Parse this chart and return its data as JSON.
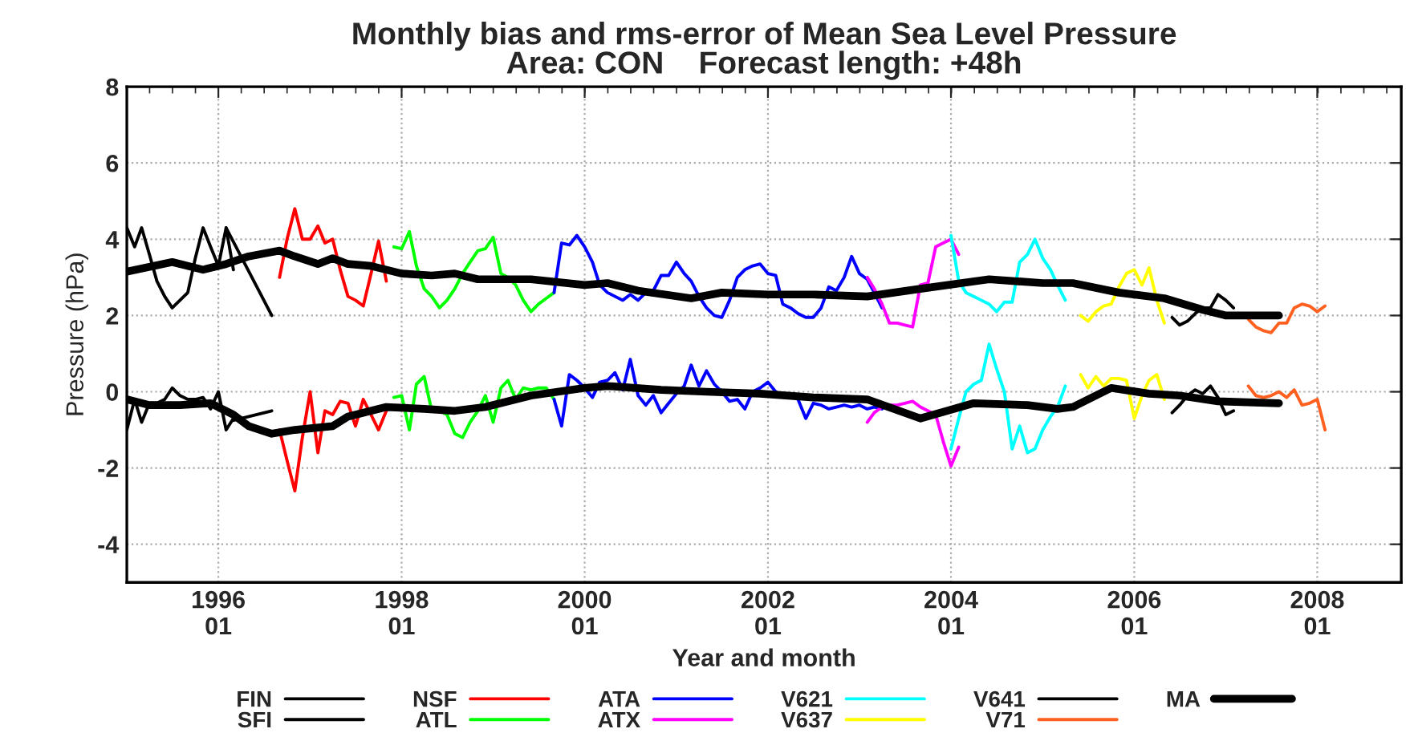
{
  "chart_data": {
    "type": "line",
    "title": "Monthly bias and rms-error of Mean Sea Level Pressure\nArea: CON    Forecast length: +48h",
    "xlabel": "Year and month",
    "ylabel": "Pressure (hPa)",
    "xlim": [
      "1995-01",
      "2008-12"
    ],
    "ylim": [
      -5,
      8
    ],
    "xticks": [
      {
        "value": "1996-01",
        "label": "1996\n01"
      },
      {
        "value": "1998-01",
        "label": "1998\n01"
      },
      {
        "value": "2000-01",
        "label": "2000\n01"
      },
      {
        "value": "2002-01",
        "label": "2002\n01"
      },
      {
        "value": "2004-01",
        "label": "2004\n01"
      },
      {
        "value": "2006-01",
        "label": "2006\n01"
      },
      {
        "value": "2008-01",
        "label": "2008\n01"
      }
    ],
    "yticks": [
      -4,
      -2,
      0,
      2,
      4,
      6,
      8
    ],
    "grid": true,
    "legend": "bottom",
    "marker": "none",
    "line_style": "solid",
    "series": [
      {
        "name": "FIN",
        "color": "#000000",
        "x": [
          "1995-01",
          "1995-02",
          "1995-03",
          "1995-04",
          "1995-05",
          "1995-06",
          "1995-07",
          "1995-08",
          "1995-09",
          "1995-10",
          "1995-11",
          "1995-12",
          "1996-01",
          "1996-02",
          "1996-03"
        ],
        "values": [
          4.3,
          3.8,
          4.3,
          3.6,
          2.9,
          2.5,
          2.2,
          2.4,
          2.6,
          3.5,
          4.3,
          3.8,
          3.3,
          4.3,
          3.2
        ]
      },
      {
        "color": "#000000",
        "x": [
          "1995-01",
          "1995-02",
          "1995-03",
          "1995-04",
          "1995-05",
          "1995-06",
          "1995-07",
          "1995-08",
          "1995-09",
          "1995-10",
          "1995-11",
          "1995-12",
          "1996-01",
          "1996-02",
          "1996-03"
        ],
        "values": [
          -1.0,
          -0.2,
          -0.8,
          -0.3,
          -0.3,
          -0.2,
          0.1,
          -0.1,
          -0.2,
          -0.2,
          -0.15,
          -0.45,
          0.0,
          -1.0,
          -0.7
        ]
      },
      {
        "name": "SFI",
        "color": "#000000",
        "x": [
          "1996-02",
          "1996-08"
        ],
        "values": [
          4.3,
          2.0
        ]
      },
      {
        "color": "#000000",
        "x": [
          "1996-03",
          "1996-08"
        ],
        "values": [
          -0.75,
          -0.5
        ]
      },
      {
        "name": "NSF",
        "color": "#ff0000",
        "x": [
          "1996-09",
          "1996-10",
          "1996-11",
          "1996-12",
          "1997-01",
          "1997-02",
          "1997-03",
          "1997-04",
          "1997-05",
          "1997-06",
          "1997-07",
          "1997-08",
          "1997-09",
          "1997-10",
          "1997-11"
        ],
        "values": [
          3.0,
          4.0,
          4.8,
          4.0,
          4.0,
          4.35,
          3.9,
          4.0,
          3.2,
          2.5,
          2.4,
          2.25,
          3.1,
          3.95,
          2.9
        ]
      },
      {
        "color": "#ff0000",
        "x": [
          "1996-09",
          "1996-10",
          "1996-11",
          "1996-12",
          "1997-01",
          "1997-02",
          "1997-03",
          "1997-04",
          "1997-05",
          "1997-06",
          "1997-07",
          "1997-08",
          "1997-09",
          "1997-10",
          "1997-11"
        ],
        "values": [
          -1.0,
          -1.8,
          -2.6,
          -1.2,
          0.0,
          -1.6,
          -0.5,
          -0.6,
          -0.25,
          -0.3,
          -0.9,
          -0.2,
          -0.6,
          -1.0,
          -0.5
        ]
      },
      {
        "name": "ATL",
        "color": "#00ff00",
        "x": [
          "1997-12",
          "1998-01",
          "1998-02",
          "1998-03",
          "1998-04",
          "1998-05",
          "1998-06",
          "1998-07",
          "1998-08",
          "1998-09",
          "1998-10",
          "1998-11",
          "1998-12",
          "1999-01",
          "1999-02",
          "1999-03",
          "1999-04",
          "1999-05",
          "1999-06",
          "1999-07",
          "1999-08",
          "1999-09"
        ],
        "values": [
          3.8,
          3.75,
          4.2,
          3.3,
          2.7,
          2.5,
          2.2,
          2.4,
          2.7,
          3.1,
          3.4,
          3.7,
          3.75,
          4.05,
          3.1,
          3.0,
          2.8,
          2.4,
          2.1,
          2.3,
          2.45,
          2.6
        ]
      },
      {
        "color": "#00ff00",
        "x": [
          "1997-12",
          "1998-01",
          "1998-02",
          "1998-03",
          "1998-04",
          "1998-05",
          "1998-06",
          "1998-07",
          "1998-08",
          "1998-09",
          "1998-10",
          "1998-11",
          "1998-12",
          "1999-01",
          "1999-02",
          "1999-03",
          "1999-04",
          "1999-05",
          "1999-06",
          "1999-07",
          "1999-08",
          "1999-09"
        ],
        "values": [
          -0.15,
          -0.1,
          -1.0,
          0.2,
          0.4,
          -0.5,
          -0.5,
          -0.6,
          -1.1,
          -1.2,
          -0.8,
          -0.5,
          -0.1,
          -0.8,
          0.1,
          0.3,
          -0.2,
          0.1,
          0.05,
          0.1,
          0.1,
          -0.2
        ]
      },
      {
        "name": "ATA",
        "color": "#0000ff",
        "x": [
          "1999-09",
          "1999-10",
          "1999-11",
          "1999-12",
          "2000-01",
          "2000-02",
          "2000-03",
          "2000-04",
          "2000-05",
          "2000-06",
          "2000-07",
          "2000-08",
          "2000-09",
          "2000-10",
          "2000-11",
          "2000-12",
          "2001-01",
          "2001-02",
          "2001-03",
          "2001-04",
          "2001-05",
          "2001-06",
          "2001-07",
          "2001-08",
          "2001-09",
          "2001-10",
          "2001-11",
          "2001-12",
          "2002-01",
          "2002-02",
          "2002-03",
          "2002-04",
          "2002-05",
          "2002-06",
          "2002-07",
          "2002-08",
          "2002-09",
          "2002-10",
          "2002-11",
          "2002-12",
          "2003-01",
          "2003-02",
          "2003-03",
          "2003-04"
        ],
        "values": [
          2.6,
          3.9,
          3.85,
          4.1,
          3.8,
          3.4,
          2.8,
          2.6,
          2.5,
          2.4,
          2.55,
          2.4,
          2.6,
          2.65,
          3.05,
          3.05,
          3.4,
          3.1,
          2.9,
          2.5,
          2.2,
          2.0,
          1.95,
          2.4,
          3.0,
          3.2,
          3.3,
          3.35,
          3.1,
          3.05,
          2.3,
          2.2,
          2.05,
          1.95,
          1.95,
          2.2,
          2.75,
          2.65,
          3.0,
          3.55,
          3.1,
          2.95,
          2.6,
          2.2
        ]
      },
      {
        "color": "#0000ff",
        "x": [
          "1999-09",
          "1999-10",
          "1999-11",
          "1999-12",
          "2000-01",
          "2000-02",
          "2000-03",
          "2000-04",
          "2000-05",
          "2000-06",
          "2000-07",
          "2000-08",
          "2000-09",
          "2000-10",
          "2000-11",
          "2000-12",
          "2001-01",
          "2001-02",
          "2001-03",
          "2001-04",
          "2001-05",
          "2001-06",
          "2001-07",
          "2001-08",
          "2001-09",
          "2001-10",
          "2001-11",
          "2001-12",
          "2002-01",
          "2002-02",
          "2002-03",
          "2002-04",
          "2002-05",
          "2002-06",
          "2002-07",
          "2002-08",
          "2002-09",
          "2002-10",
          "2002-11",
          "2002-12",
          "2003-01",
          "2003-02",
          "2003-03",
          "2003-04"
        ],
        "values": [
          -0.2,
          -0.9,
          0.45,
          0.3,
          0.1,
          -0.15,
          0.25,
          0.3,
          0.5,
          0.05,
          0.85,
          -0.1,
          -0.35,
          -0.1,
          -0.55,
          -0.3,
          -0.05,
          0.15,
          0.7,
          0.15,
          0.55,
          0.2,
          0.0,
          -0.25,
          -0.2,
          -0.45,
          0.0,
          0.1,
          0.25,
          0.0,
          -0.1,
          -0.1,
          -0.2,
          -0.7,
          -0.3,
          -0.35,
          -0.45,
          -0.4,
          -0.35,
          -0.4,
          -0.35,
          -0.45,
          -0.4,
          -0.45
        ]
      },
      {
        "name": "ATX",
        "color": "#ff00ff",
        "x": [
          "2003-02",
          "2003-03",
          "2003-04",
          "2003-05",
          "2003-06",
          "2003-07",
          "2003-08",
          "2003-09",
          "2003-10",
          "2003-11",
          "2003-12",
          "2004-01",
          "2004-02"
        ],
        "values": [
          3.0,
          2.7,
          2.3,
          1.8,
          1.8,
          1.75,
          1.7,
          2.8,
          2.85,
          3.8,
          3.9,
          4.0,
          3.6
        ]
      },
      {
        "color": "#ff00ff",
        "x": [
          "2003-02",
          "2003-03",
          "2003-04",
          "2003-05",
          "2003-06",
          "2003-07",
          "2003-08",
          "2003-09",
          "2003-10",
          "2003-11",
          "2003-12",
          "2004-01",
          "2004-02"
        ],
        "values": [
          -0.8,
          -0.55,
          -0.4,
          -0.35,
          -0.35,
          -0.3,
          -0.25,
          -0.4,
          -0.5,
          -0.6,
          -1.3,
          -1.95,
          -1.45
        ]
      },
      {
        "name": "V621",
        "color": "#00ffff",
        "x": [
          "2004-01",
          "2004-02",
          "2004-03",
          "2004-04",
          "2004-05",
          "2004-06",
          "2004-07",
          "2004-08",
          "2004-09",
          "2004-10",
          "2004-11",
          "2004-12",
          "2005-01",
          "2005-02",
          "2005-03",
          "2005-04"
        ],
        "values": [
          4.1,
          2.9,
          2.6,
          2.5,
          2.4,
          2.3,
          2.1,
          2.35,
          2.35,
          3.4,
          3.6,
          4.0,
          3.5,
          3.2,
          2.8,
          2.4
        ]
      },
      {
        "color": "#00ffff",
        "x": [
          "2004-01",
          "2004-02",
          "2004-03",
          "2004-04",
          "2004-05",
          "2004-06",
          "2004-07",
          "2004-08",
          "2004-09",
          "2004-10",
          "2004-11",
          "2004-12",
          "2005-01",
          "2005-02",
          "2005-03",
          "2005-04"
        ],
        "values": [
          -1.5,
          -0.7,
          0.0,
          0.2,
          0.3,
          1.25,
          0.6,
          0.0,
          -1.5,
          -0.9,
          -1.6,
          -1.5,
          -1.0,
          -0.65,
          -0.4,
          0.15
        ]
      },
      {
        "name": "V637",
        "color": "#ffff00",
        "x": [
          "2005-06",
          "2005-07",
          "2005-08",
          "2005-09",
          "2005-10",
          "2005-11",
          "2005-12",
          "2006-01",
          "2006-02",
          "2006-03",
          "2006-04",
          "2006-05"
        ],
        "values": [
          2.0,
          1.85,
          2.1,
          2.25,
          2.3,
          2.75,
          3.1,
          3.2,
          2.8,
          3.25,
          2.4,
          1.8
        ]
      },
      {
        "color": "#ffff00",
        "x": [
          "2005-06",
          "2005-07",
          "2005-08",
          "2005-09",
          "2005-10",
          "2005-11",
          "2005-12",
          "2006-01",
          "2006-02",
          "2006-03",
          "2006-04",
          "2006-05"
        ],
        "values": [
          0.45,
          0.1,
          0.4,
          0.15,
          0.35,
          0.35,
          0.3,
          -0.7,
          -0.1,
          0.3,
          0.45,
          -0.2
        ]
      },
      {
        "name": "V641",
        "color": "#000000",
        "x": [
          "2006-06",
          "2006-07",
          "2006-08",
          "2006-09",
          "2006-10",
          "2006-11",
          "2006-12",
          "2007-01",
          "2007-02"
        ],
        "values": [
          1.95,
          1.75,
          1.85,
          2.05,
          2.2,
          2.2,
          2.55,
          2.4,
          2.2
        ]
      },
      {
        "color": "#000000",
        "x": [
          "2006-06",
          "2006-07",
          "2006-08",
          "2006-09",
          "2006-10",
          "2006-11",
          "2006-12",
          "2007-01",
          "2007-02"
        ],
        "values": [
          -0.55,
          -0.35,
          -0.1,
          0.05,
          -0.05,
          0.15,
          -0.15,
          -0.6,
          -0.5
        ]
      },
      {
        "name": "V71",
        "color": "#ff6020",
        "x": [
          "2007-04",
          "2007-05",
          "2007-06",
          "2007-07",
          "2007-08",
          "2007-09",
          "2007-10",
          "2007-11",
          "2007-12",
          "2008-01",
          "2008-02"
        ],
        "values": [
          1.9,
          1.7,
          1.6,
          1.55,
          1.8,
          1.8,
          2.2,
          2.3,
          2.25,
          2.1,
          2.25
        ]
      },
      {
        "color": "#ff6020",
        "x": [
          "2007-04",
          "2007-05",
          "2007-06",
          "2007-07",
          "2007-08",
          "2007-09",
          "2007-10",
          "2007-11",
          "2007-12",
          "2008-01",
          "2008-02"
        ],
        "values": [
          0.15,
          -0.1,
          -0.15,
          -0.1,
          0.0,
          -0.15,
          0.05,
          -0.35,
          -0.3,
          -0.2,
          -1.0
        ]
      },
      {
        "name": "MA",
        "color": "#000000",
        "x": [
          "1995-01",
          "1995-07",
          "1995-11",
          "1996-02",
          "1996-05",
          "1996-09",
          "1996-11",
          "1997-02",
          "1997-04",
          "1997-06",
          "1997-09",
          "1998-01",
          "1998-05",
          "1998-08",
          "1998-11",
          "1999-06",
          "2000-01",
          "2000-04",
          "2000-08",
          "2001-03",
          "2001-07",
          "2002-01",
          "2002-07",
          "2003-02",
          "2003-09",
          "2004-06",
          "2005-01",
          "2005-05",
          "2005-11",
          "2006-05",
          "2006-10",
          "2007-01",
          "2007-08"
        ],
        "values": [
          3.15,
          3.4,
          3.2,
          3.35,
          3.55,
          3.7,
          3.55,
          3.35,
          3.5,
          3.35,
          3.3,
          3.1,
          3.05,
          3.1,
          2.95,
          2.95,
          2.8,
          2.85,
          2.65,
          2.45,
          2.6,
          2.55,
          2.55,
          2.5,
          2.7,
          2.95,
          2.85,
          2.85,
          2.6,
          2.45,
          2.15,
          2.0,
          2.0
        ]
      },
      {
        "color": "#000000",
        "x": [
          "1995-01",
          "1995-04",
          "1995-08",
          "1995-12",
          "1996-03",
          "1996-05",
          "1996-08",
          "1996-11",
          "1997-04",
          "1997-06",
          "1997-09",
          "1997-11",
          "1998-04",
          "1998-08",
          "1998-12",
          "1999-06",
          "2000-01",
          "2000-04",
          "2000-11",
          "2001-05",
          "2001-12",
          "2002-07",
          "2003-02",
          "2003-09",
          "2004-04",
          "2004-11",
          "2005-03",
          "2005-05",
          "2005-10",
          "2006-03",
          "2006-07",
          "2006-12",
          "2007-08"
        ],
        "values": [
          -0.2,
          -0.35,
          -0.35,
          -0.3,
          -0.6,
          -0.9,
          -1.1,
          -1.0,
          -0.9,
          -0.65,
          -0.5,
          -0.4,
          -0.45,
          -0.5,
          -0.4,
          -0.1,
          0.1,
          0.15,
          0.05,
          0.0,
          -0.05,
          -0.15,
          -0.2,
          -0.7,
          -0.3,
          -0.35,
          -0.45,
          -0.4,
          0.1,
          -0.05,
          -0.1,
          -0.25,
          -0.3
        ]
      }
    ]
  }
}
